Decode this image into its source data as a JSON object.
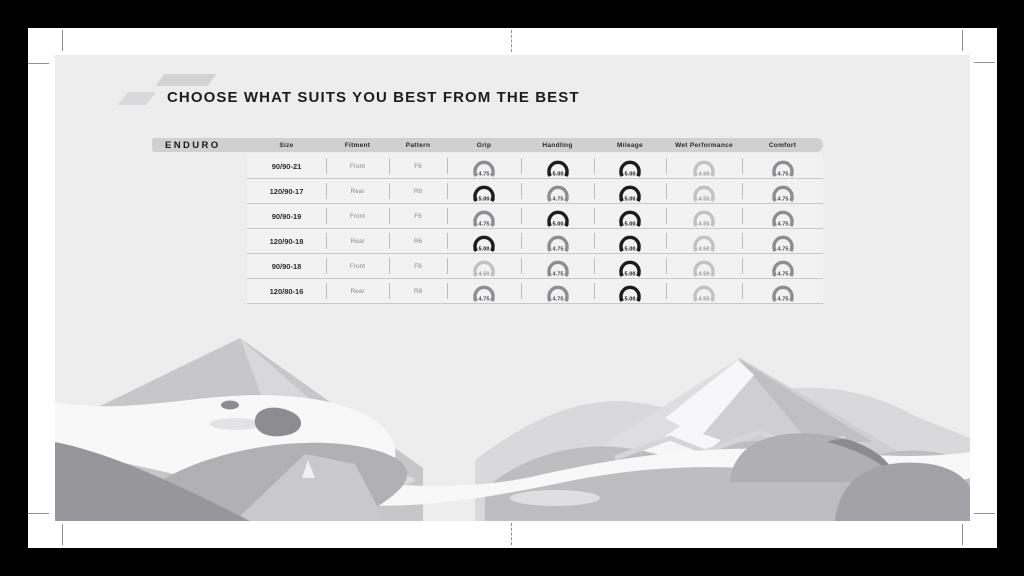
{
  "page": {
    "title": "CHOOSE WHAT SUITS YOU BEST FROM THE BEST",
    "section_label": "ENDURO"
  },
  "table": {
    "columns": [
      "Size",
      "Fitment",
      "Pattern",
      "Grip",
      "Handling",
      "Mileage",
      "Wet Performance",
      "Comfort"
    ],
    "rows": [
      {
        "size": "90/90-21",
        "fitment": "Front",
        "pattern": "F6",
        "ratings": [
          "4.75",
          "5.00",
          "5.00",
          "4.50",
          "4.75"
        ]
      },
      {
        "size": "120/90-17",
        "fitment": "Rear",
        "pattern": "R6",
        "ratings": [
          "5.00",
          "4.75",
          "5.00",
          "4.50",
          "4.75"
        ]
      },
      {
        "size": "90/90-19",
        "fitment": "Front",
        "pattern": "F6",
        "ratings": [
          "4.75",
          "5.00",
          "5.00",
          "4.50",
          "4.75"
        ]
      },
      {
        "size": "120/90-18",
        "fitment": "Rear",
        "pattern": "R6",
        "ratings": [
          "5.00",
          "4.75",
          "5.00",
          "4.50",
          "4.75"
        ]
      },
      {
        "size": "90/90-18",
        "fitment": "Front",
        "pattern": "F8",
        "ratings": [
          "4.50",
          "4.75",
          "5.00",
          "4.50",
          "4.75"
        ]
      },
      {
        "size": "120/80-16",
        "fitment": "Rear",
        "pattern": "R8",
        "ratings": [
          "4.75",
          "4.75",
          "5.00",
          "4.50",
          "4.75"
        ]
      }
    ]
  },
  "rating_colors": {
    "5.00": {
      "arc": "#1c1c1e",
      "text": "#141416"
    },
    "4.75": {
      "arc": "#8e8e92",
      "text": "#4a4a4d"
    },
    "4.50": {
      "arc": "#c2c2c5",
      "text": "#97979b"
    }
  },
  "colors": {
    "frame": "#000000",
    "sheet": "#ffffff",
    "page_background": "#ededee",
    "header_band": "#d0d0d3",
    "ink": "#1d1d1f"
  }
}
